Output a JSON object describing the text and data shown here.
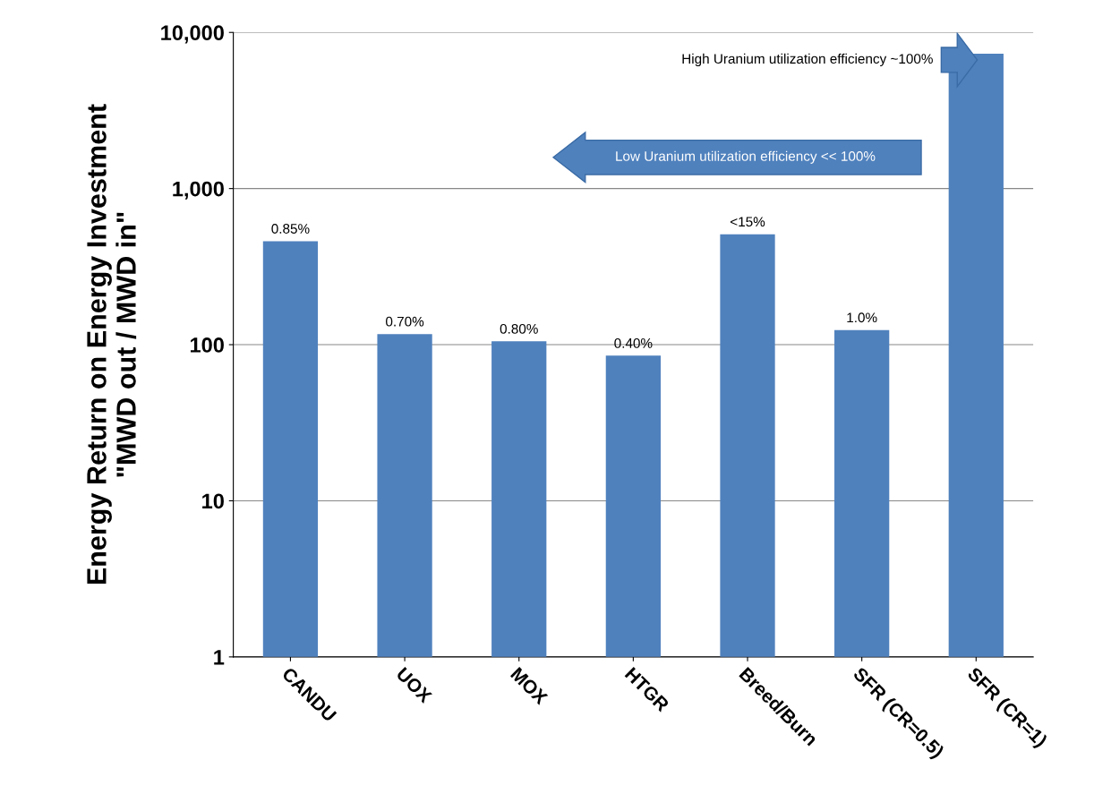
{
  "chart_data": {
    "type": "bar",
    "ylabel": "Energy Return on Energy Investment\n\"MWD out / MWD in\"",
    "categories": [
      "CANDU",
      "UOX",
      "MOX",
      "HTGR",
      "Breed/Burn",
      "SFR (CR=0.5)",
      "SFR (CR=1)"
    ],
    "values": [
      460,
      117,
      105,
      85,
      510,
      124,
      7300
    ],
    "color": "#4f81bd",
    "log": "y",
    "ylim": [
      1,
      10000
    ],
    "yticks": [
      1,
      10,
      100,
      {
        "value": 1000,
        "label": "1,000"
      },
      {
        "value": 10000,
        "label": "10,000"
      }
    ],
    "grid": "y",
    "annotations": [
      "High Uranium utilization efficiency ~100%",
      "Low Uranium utilization efficiency << 100%",
      {
        "text": "0.85%",
        "x": "CANDU",
        "y": 460
      },
      {
        "text": "0.70%",
        "x": "UOX",
        "y": 117
      },
      {
        "text": "0.80%",
        "x": "MOX",
        "y": 105
      },
      {
        "text": "0.40%",
        "x": "HTGR",
        "y": 85
      },
      {
        "text": "<15%",
        "x": "Breed/Burn",
        "y": 510
      },
      {
        "text": "1.0%",
        "x": "SFR (CR=0.5)",
        "y": 124
      }
    ]
  }
}
